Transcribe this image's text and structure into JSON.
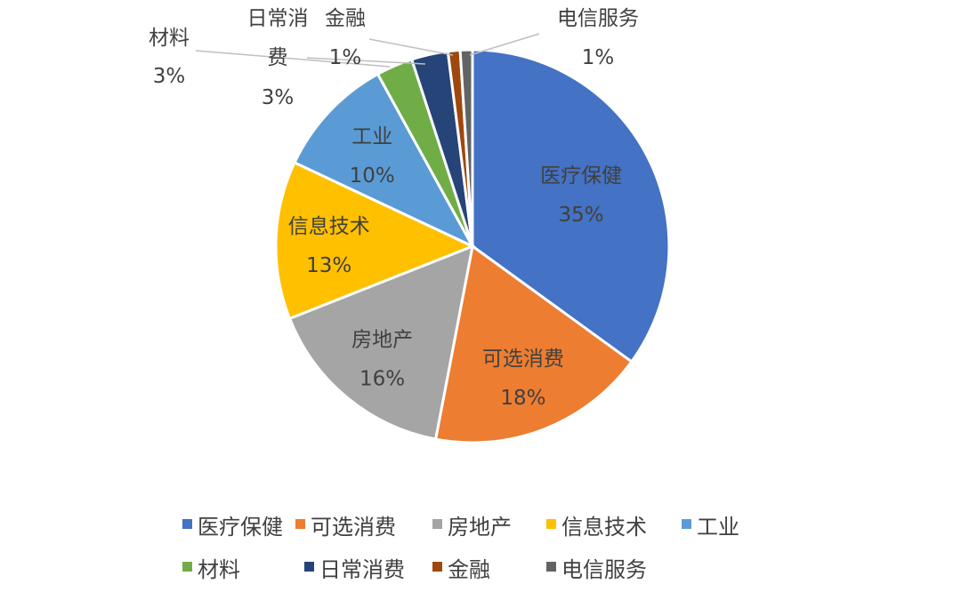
{
  "chart_data": {
    "type": "pie",
    "title": "",
    "categories": [
      "医疗保健",
      "可选消费",
      "房地产",
      "信息技术",
      "工业",
      "材料",
      "日常消费",
      "金融",
      "电信服务"
    ],
    "values": [
      35,
      18,
      16,
      13,
      10,
      3,
      3,
      1,
      1
    ],
    "data_labels": [
      "35%",
      "18%",
      "16%",
      "13%",
      "10%",
      "3%",
      "3%",
      "1%",
      "1%"
    ],
    "colors": [
      "#4472C4",
      "#ED7D31",
      "#A5A5A5",
      "#FFC000",
      "#5B9BD5",
      "#70AD47",
      "#264478",
      "#9E480E",
      "#636363"
    ],
    "legend_position": "bottom"
  }
}
